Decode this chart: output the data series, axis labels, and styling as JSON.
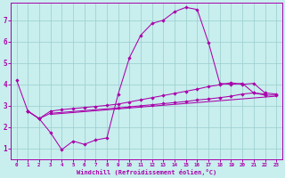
{
  "xlabel": "Windchill (Refroidissement éolien,°C)",
  "bg_color": "#c8eeee",
  "line_color": "#aa00aa",
  "grid_color": "#99cccc",
  "xlim": [
    -0.5,
    23.5
  ],
  "ylim": [
    0.5,
    7.8
  ],
  "xticks": [
    0,
    1,
    2,
    3,
    4,
    5,
    6,
    7,
    8,
    9,
    10,
    11,
    12,
    13,
    14,
    15,
    16,
    17,
    18,
    19,
    20,
    21,
    22,
    23
  ],
  "yticks": [
    1,
    2,
    3,
    4,
    5,
    6,
    7
  ],
  "curve1_x": [
    0,
    1,
    2,
    3,
    4,
    5,
    6,
    7,
    8,
    9,
    10,
    11,
    12,
    13,
    14,
    15,
    16,
    17,
    18,
    19,
    20,
    21,
    22
  ],
  "curve1_y": [
    4.2,
    2.75,
    2.4,
    1.75,
    0.95,
    1.35,
    1.2,
    1.4,
    1.5,
    3.55,
    5.25,
    6.3,
    6.85,
    7.0,
    7.4,
    7.6,
    7.5,
    5.95,
    4.05,
    4.0,
    4.05,
    3.6,
    3.55
  ],
  "curve2_x": [
    1,
    2,
    3,
    4,
    5,
    6,
    7,
    8,
    9,
    10,
    11,
    12,
    13,
    14,
    15,
    16,
    17,
    18,
    19,
    20,
    21,
    22,
    23
  ],
  "curve2_y": [
    2.75,
    2.4,
    2.75,
    2.82,
    2.87,
    2.92,
    2.97,
    3.02,
    3.08,
    3.18,
    3.28,
    3.38,
    3.48,
    3.58,
    3.68,
    3.78,
    3.9,
    3.98,
    4.08,
    4.0,
    4.05,
    3.6,
    3.55
  ],
  "curve3_x": [
    1,
    2,
    3,
    9,
    10,
    11,
    12,
    13,
    14,
    15,
    16,
    17,
    18,
    19,
    20,
    21,
    22,
    23
  ],
  "curve3_y": [
    2.75,
    2.4,
    2.65,
    2.9,
    2.95,
    3.0,
    3.05,
    3.1,
    3.15,
    3.2,
    3.27,
    3.32,
    3.38,
    3.45,
    3.55,
    3.6,
    3.5,
    3.5
  ],
  "curve4_x": [
    3,
    23
  ],
  "curve4_y": [
    2.6,
    3.45
  ]
}
